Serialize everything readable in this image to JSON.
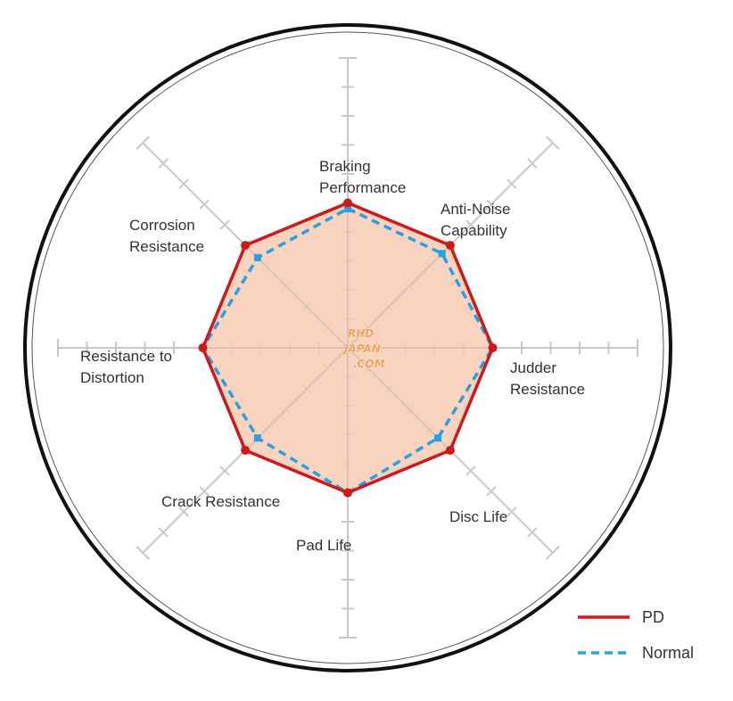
{
  "chart_data": {
    "type": "radar",
    "axes": [
      "Braking\nPerformance",
      "Anti-Noise\nCapability",
      "Judder\nResistance",
      "Disc Life",
      "Pad Life",
      "Crack Resistance",
      "Resistance to\nDistortion",
      "Corrosion\nResistance"
    ],
    "max": 10,
    "grid": true,
    "series": [
      {
        "name": "PD",
        "values": [
          5,
          5,
          5,
          5,
          5,
          5,
          5,
          5
        ],
        "color": "#cc1a1a",
        "style": "solid",
        "fill": "#f7cdb4"
      },
      {
        "name": "Normal",
        "values": [
          4.8,
          4.6,
          5,
          4.4,
          5,
          4.4,
          5,
          4.4
        ],
        "color": "#2a9fe3",
        "style": "dashed"
      }
    ],
    "legend_position": "bottom-right",
    "watermark": [
      "RHD",
      "JAPAN",
      ".COM"
    ]
  }
}
